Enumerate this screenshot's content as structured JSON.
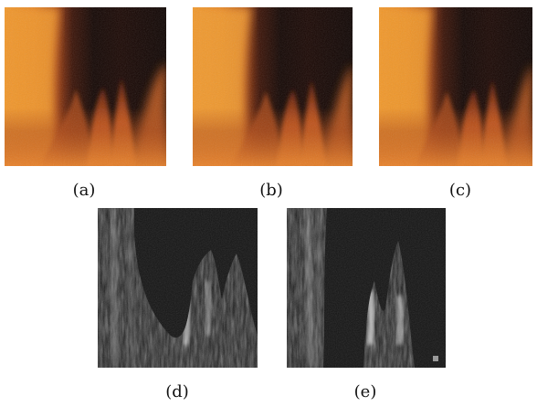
{
  "figure": {
    "panels": [
      {
        "id": "a",
        "label": "(a)",
        "kind": "flame-color"
      },
      {
        "id": "b",
        "label": "(b)",
        "kind": "flame-color"
      },
      {
        "id": "c",
        "label": "(c)",
        "kind": "flame-color"
      },
      {
        "id": "d",
        "label": "(d)",
        "kind": "difference-map"
      },
      {
        "id": "e",
        "label": "(e)",
        "kind": "difference-map"
      }
    ],
    "colors": {
      "flame_bright": "#f5a030",
      "flame_mid": "#c85a18",
      "flame_dark": "#2a0c04",
      "void": "#0c0402",
      "diff_bg": "#141414",
      "diff_fg": "#d8d8d8"
    }
  }
}
